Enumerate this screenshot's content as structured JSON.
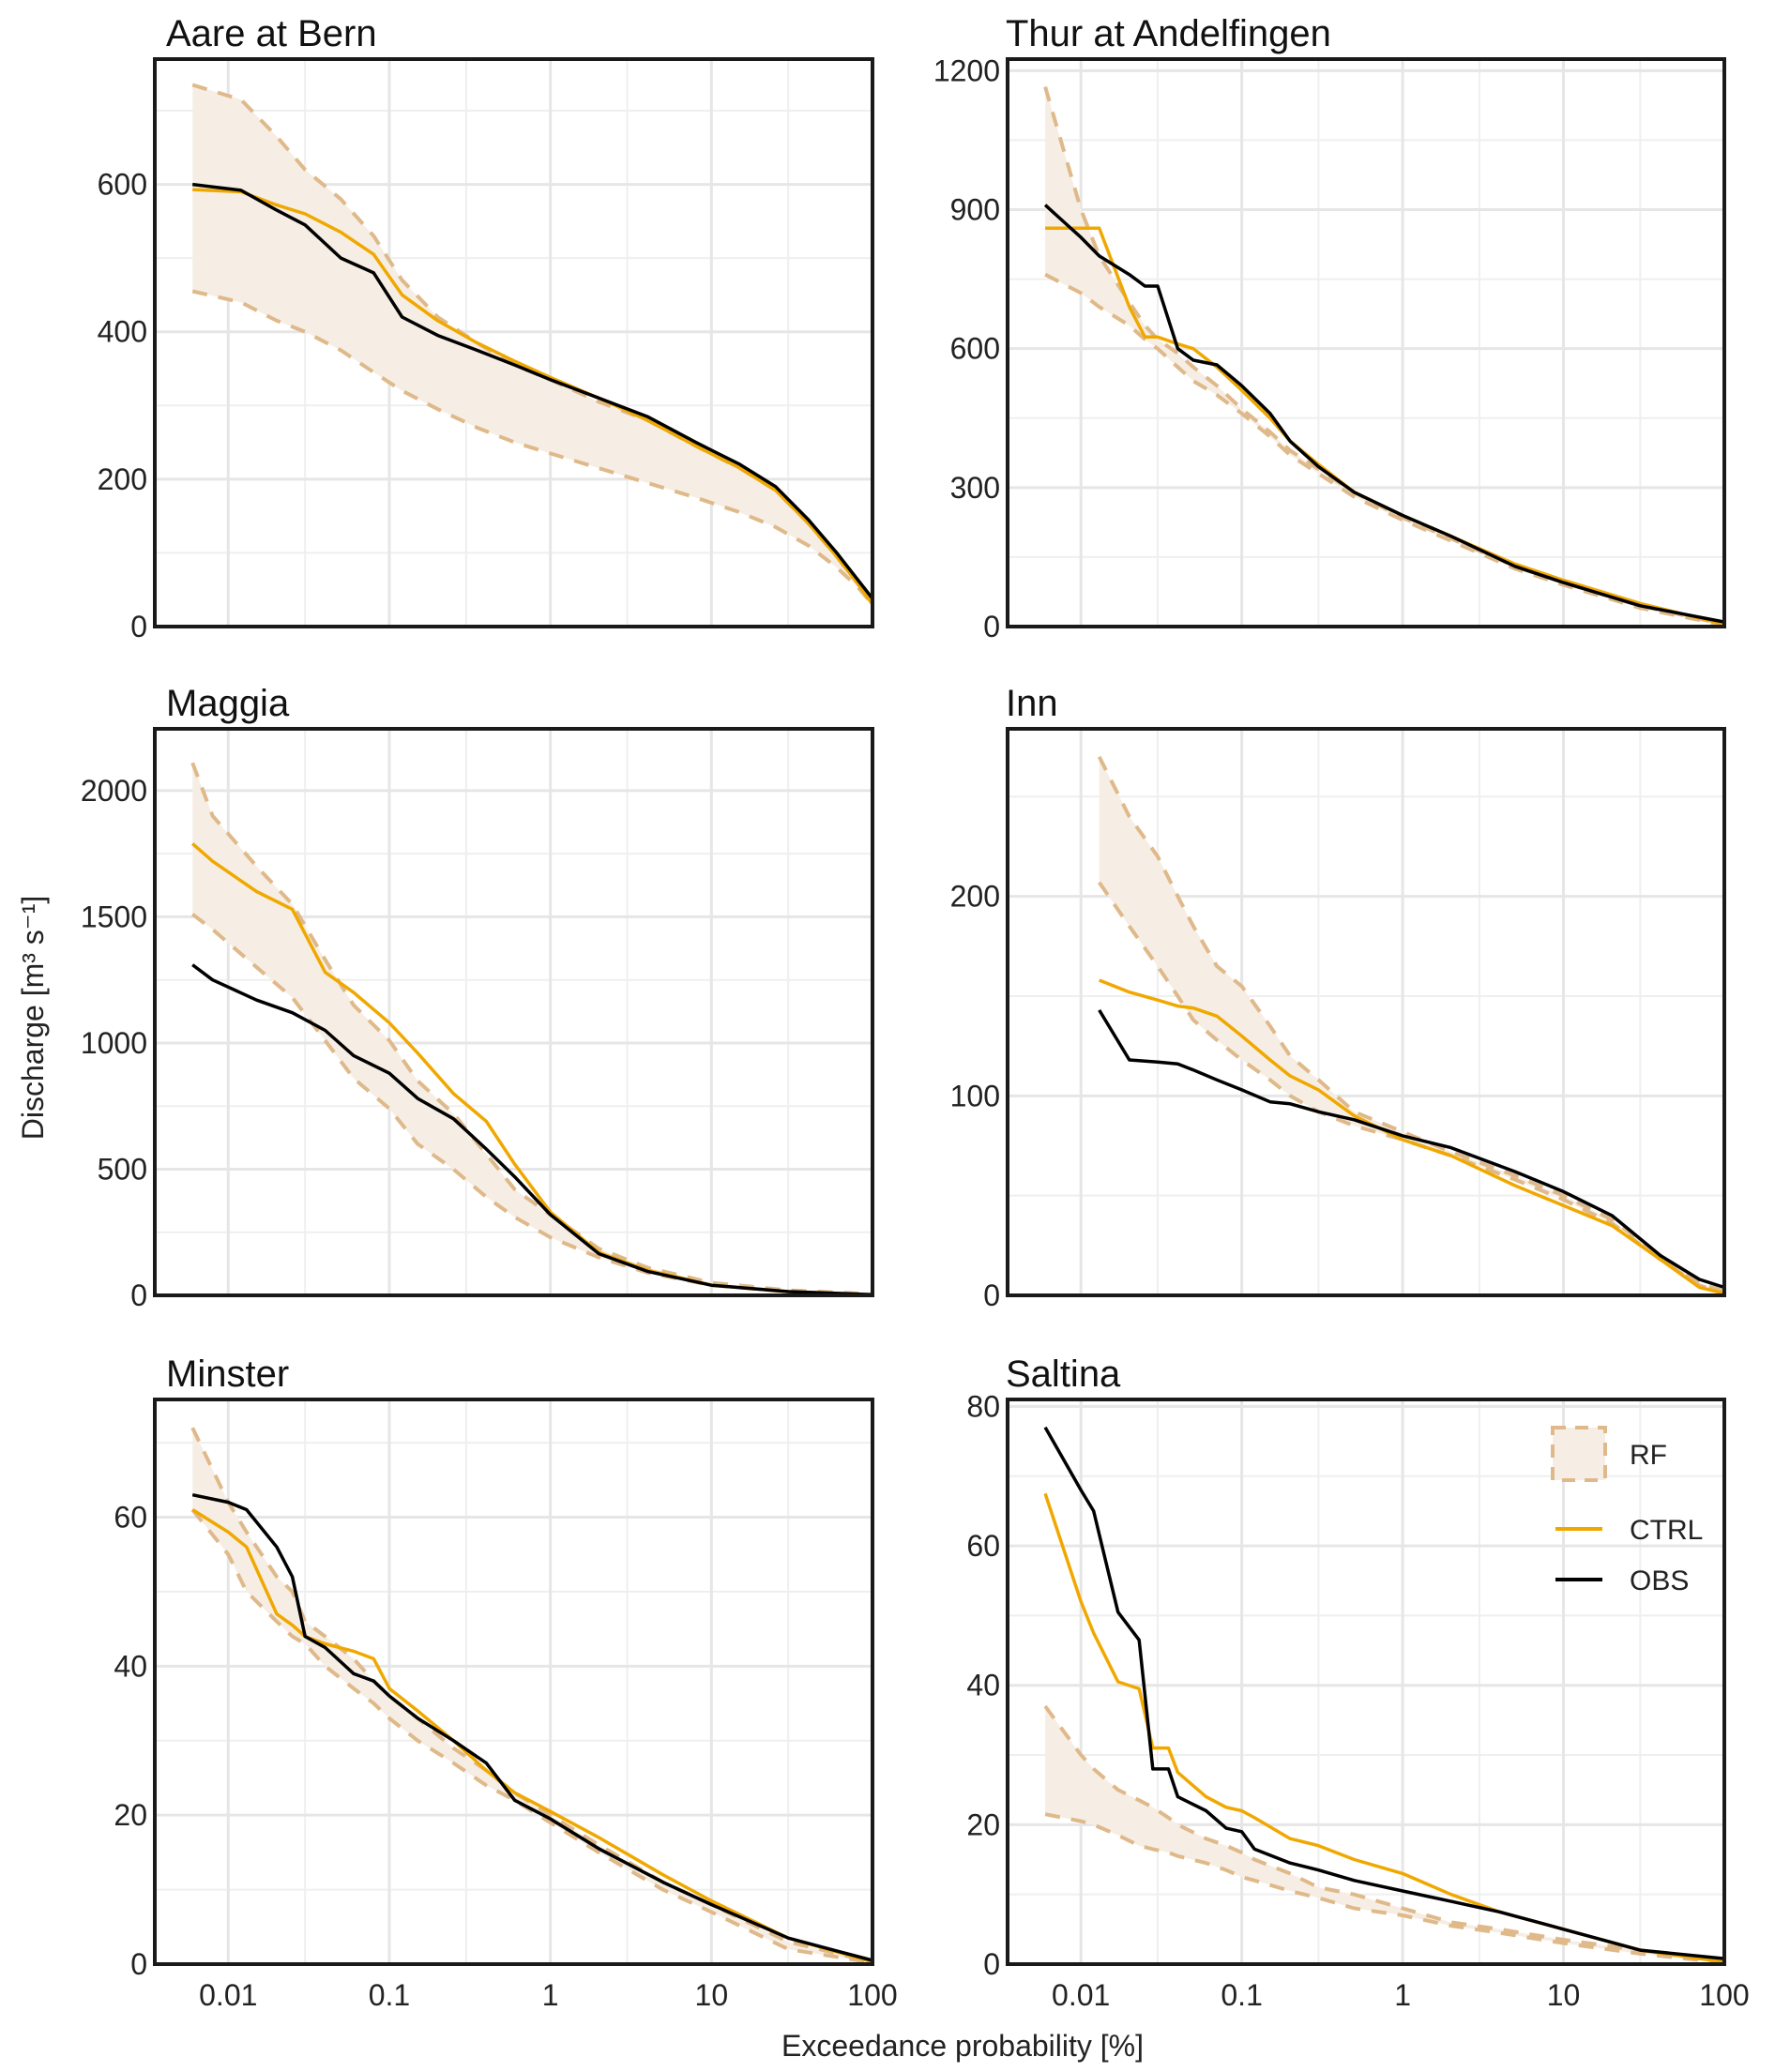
{
  "figure": {
    "y_axis_title": "Discharge [m³ s⁻¹]",
    "x_axis_title": "Exceedance probability [%]",
    "colors": {
      "rf_fill": "#f6eee4",
      "rf_line": "#dfb98a",
      "ctrl": "#f0a800",
      "obs": "#000000"
    }
  },
  "legend": {
    "placement": "top-right of Saltina panel",
    "items": [
      {
        "key": "rf",
        "label": "RF"
      },
      {
        "key": "ctrl",
        "label": "CTRL"
      },
      {
        "key": "obs",
        "label": "OBS"
      }
    ]
  },
  "chart_data": [
    {
      "type": "line",
      "title": "Aare at Bern",
      "xlabel": "Exceedance probability [%]",
      "ylabel": "Discharge [m³ s⁻¹]",
      "xscale": "log",
      "xlim": [
        0.0035,
        100
      ],
      "xticks": [
        0.01,
        0.1,
        1,
        10,
        100
      ],
      "show_xticks": false,
      "ylim": [
        0,
        770
      ],
      "yticks": [
        0,
        200,
        400,
        600
      ],
      "yminor": [
        100,
        300,
        500,
        700
      ],
      "x": [
        0.006,
        0.012,
        0.02,
        0.03,
        0.05,
        0.08,
        0.12,
        0.2,
        0.35,
        0.6,
        1,
        2,
        4,
        8,
        15,
        25,
        40,
        60,
        80,
        100
      ],
      "series": [
        {
          "name": "RF_upper",
          "values": [
            735,
            715,
            665,
            620,
            580,
            530,
            470,
            420,
            385,
            355,
            335,
            305,
            280,
            245,
            215,
            185,
            140,
            95,
            60,
            32
          ]
        },
        {
          "name": "RF_lower",
          "values": [
            455,
            440,
            415,
            400,
            375,
            345,
            320,
            295,
            270,
            250,
            235,
            215,
            195,
            175,
            155,
            135,
            110,
            80,
            55,
            30
          ]
        },
        {
          "name": "CTRL",
          "values": [
            593,
            590,
            572,
            560,
            535,
            505,
            450,
            415,
            385,
            360,
            338,
            310,
            280,
            245,
            215,
            185,
            140,
            95,
            60,
            30
          ]
        },
        {
          "name": "OBS",
          "values": [
            600,
            592,
            565,
            545,
            500,
            480,
            420,
            395,
            375,
            355,
            335,
            310,
            285,
            250,
            220,
            190,
            145,
            100,
            65,
            38
          ]
        }
      ]
    },
    {
      "type": "line",
      "title": "Thur at Andelfingen",
      "xlabel": "Exceedance probability [%]",
      "ylabel": "Discharge [m³ s⁻¹]",
      "xscale": "log",
      "xlim": [
        0.0035,
        100
      ],
      "xticks": [
        0.01,
        0.1,
        1,
        10,
        100
      ],
      "show_xticks": false,
      "ylim": [
        0,
        1225
      ],
      "yticks": [
        0,
        300,
        600,
        900,
        1200
      ],
      "yminor": [
        150,
        450,
        750,
        1050
      ],
      "x": [
        0.006,
        0.01,
        0.013,
        0.02,
        0.025,
        0.03,
        0.04,
        0.05,
        0.07,
        0.1,
        0.15,
        0.2,
        0.3,
        0.5,
        1,
        2,
        5,
        10,
        30,
        100
      ],
      "series": [
        {
          "name": "RF_upper",
          "values": [
            1165,
            900,
            800,
            700,
            650,
            620,
            590,
            560,
            520,
            470,
            420,
            380,
            340,
            290,
            235,
            190,
            130,
            95,
            45,
            5
          ]
        },
        {
          "name": "RF_lower",
          "values": [
            760,
            720,
            690,
            650,
            620,
            600,
            560,
            530,
            500,
            460,
            410,
            370,
            330,
            280,
            230,
            185,
            125,
            90,
            40,
            3
          ]
        },
        {
          "name": "CTRL",
          "values": [
            860,
            860,
            860,
            690,
            625,
            625,
            610,
            600,
            560,
            510,
            450,
            400,
            350,
            290,
            240,
            195,
            135,
            100,
            50,
            5
          ]
        },
        {
          "name": "OBS",
          "values": [
            910,
            840,
            800,
            760,
            735,
            735,
            600,
            575,
            565,
            520,
            460,
            400,
            345,
            290,
            240,
            195,
            130,
            95,
            45,
            10
          ]
        }
      ]
    },
    {
      "type": "line",
      "title": "Maggia",
      "xlabel": "Exceedance probability [%]",
      "ylabel": "Discharge [m³ s⁻¹]",
      "xscale": "log",
      "xlim": [
        0.0035,
        100
      ],
      "xticks": [
        0.01,
        0.1,
        1,
        10,
        100
      ],
      "show_xticks": false,
      "ylim": [
        0,
        2245
      ],
      "yticks": [
        0,
        500,
        1000,
        1500,
        2000
      ],
      "yminor": [
        250,
        750,
        1250,
        1750
      ],
      "x": [
        0.006,
        0.008,
        0.015,
        0.025,
        0.04,
        0.06,
        0.1,
        0.15,
        0.25,
        0.4,
        0.6,
        1,
        2,
        4,
        10,
        30,
        100
      ],
      "series": [
        {
          "name": "RF_upper",
          "values": [
            2110,
            1900,
            1700,
            1550,
            1330,
            1150,
            1010,
            850,
            720,
            560,
            420,
            320,
            185,
            110,
            50,
            20,
            5
          ]
        },
        {
          "name": "RF_lower",
          "values": [
            1510,
            1450,
            1300,
            1180,
            1010,
            860,
            740,
            600,
            500,
            390,
            310,
            230,
            150,
            90,
            40,
            15,
            3
          ]
        },
        {
          "name": "CTRL",
          "values": [
            1790,
            1720,
            1600,
            1530,
            1280,
            1200,
            1080,
            960,
            800,
            690,
            520,
            330,
            170,
            100,
            40,
            15,
            3
          ]
        },
        {
          "name": "OBS",
          "values": [
            1310,
            1250,
            1170,
            1120,
            1050,
            950,
            880,
            780,
            700,
            580,
            470,
            320,
            165,
            95,
            40,
            15,
            3
          ]
        }
      ]
    },
    {
      "type": "line",
      "title": "Inn",
      "xlabel": "Exceedance probability [%]",
      "ylabel": "Discharge [m³ s⁻¹]",
      "xscale": "log",
      "xlim": [
        0.0035,
        100
      ],
      "xticks": [
        0.01,
        0.1,
        1,
        10,
        100
      ],
      "show_xticks": false,
      "ylim": [
        0,
        284
      ],
      "yticks": [
        0,
        100,
        200
      ],
      "yminor": [
        50,
        150,
        250
      ],
      "x": [
        0.013,
        0.02,
        0.03,
        0.04,
        0.05,
        0.07,
        0.1,
        0.15,
        0.2,
        0.3,
        0.5,
        1,
        2,
        5,
        10,
        20,
        40,
        70,
        100
      ],
      "series": [
        {
          "name": "RF_upper",
          "values": [
            270,
            240,
            220,
            200,
            185,
            165,
            155,
            135,
            120,
            108,
            92,
            82,
            72,
            60,
            50,
            38,
            20,
            6,
            2
          ]
        },
        {
          "name": "RF_lower",
          "values": [
            207,
            185,
            165,
            150,
            138,
            128,
            118,
            108,
            100,
            92,
            85,
            78,
            70,
            58,
            48,
            36,
            18,
            5,
            1
          ]
        },
        {
          "name": "CTRL",
          "values": [
            158,
            152,
            148,
            145,
            144,
            140,
            130,
            118,
            110,
            103,
            90,
            78,
            70,
            55,
            45,
            35,
            18,
            4,
            1
          ]
        },
        {
          "name": "OBS",
          "values": [
            143,
            118,
            117,
            116,
            113,
            108,
            103,
            97,
            96,
            92,
            88,
            80,
            74,
            62,
            52,
            40,
            20,
            8,
            4
          ]
        }
      ]
    },
    {
      "type": "line",
      "title": "Minster",
      "xlabel": "Exceedance probability [%]",
      "ylabel": "Discharge [m³ s⁻¹]",
      "xscale": "log",
      "xlim": [
        0.0035,
        100
      ],
      "xticks": [
        0.01,
        0.1,
        1,
        10,
        100
      ],
      "show_xticks": true,
      "ylim": [
        0,
        75.8
      ],
      "yticks": [
        0,
        20,
        40,
        60
      ],
      "yminor": [
        10,
        30,
        50,
        70
      ],
      "x": [
        0.006,
        0.01,
        0.013,
        0.02,
        0.025,
        0.03,
        0.04,
        0.06,
        0.08,
        0.1,
        0.15,
        0.25,
        0.4,
        0.6,
        1,
        2,
        5,
        10,
        30,
        100
      ],
      "series": [
        {
          "name": "RF_upper",
          "values": [
            72,
            62,
            58,
            52,
            50,
            46,
            44,
            41,
            38,
            36,
            33,
            29,
            26,
            23,
            20,
            16,
            11,
            8,
            3,
            0.3
          ]
        },
        {
          "name": "RF_lower",
          "values": [
            61,
            55,
            50,
            46,
            44,
            43,
            40,
            37,
            35,
            33,
            30,
            27,
            24,
            22,
            19,
            15,
            10,
            7,
            2,
            0.2
          ]
        },
        {
          "name": "CTRL",
          "values": [
            61,
            58,
            56,
            47,
            45.5,
            44,
            43,
            42,
            41,
            37,
            34,
            30,
            26,
            23,
            20.5,
            17,
            12,
            8.5,
            3.5,
            0.3
          ]
        },
        {
          "name": "OBS",
          "values": [
            63,
            62,
            61,
            56,
            52,
            44,
            42.5,
            39,
            38,
            36,
            33,
            30,
            27,
            22,
            19.5,
            15.5,
            11,
            8,
            3.5,
            0.5
          ]
        }
      ]
    },
    {
      "type": "line",
      "title": "Saltina",
      "xlabel": "Exceedance probability [%]",
      "ylabel": "Discharge [m³ s⁻¹]",
      "xscale": "log",
      "xlim": [
        0.0035,
        100
      ],
      "xticks": [
        0.01,
        0.1,
        1,
        10,
        100
      ],
      "show_xticks": true,
      "ylim": [
        0,
        81
      ],
      "yticks": [
        0,
        20,
        40,
        60,
        80
      ],
      "yminor": [
        10,
        30,
        50,
        70
      ],
      "x": [
        0.006,
        0.01,
        0.012,
        0.017,
        0.023,
        0.028,
        0.035,
        0.04,
        0.06,
        0.08,
        0.1,
        0.12,
        0.2,
        0.3,
        0.5,
        1,
        2,
        4,
        10,
        30,
        100
      ],
      "series": [
        {
          "name": "RF_upper",
          "values": [
            37,
            30,
            28,
            25,
            23.5,
            22.5,
            21,
            20,
            18,
            17,
            16,
            15,
            13,
            11,
            10,
            8,
            6,
            5,
            3.5,
            2,
            0.3
          ]
        },
        {
          "name": "RF_lower",
          "values": [
            21.5,
            20.5,
            20,
            18.5,
            17,
            16.5,
            16,
            15.5,
            14.5,
            13.5,
            12.5,
            12,
            10.5,
            9.5,
            8,
            7,
            5.5,
            4.5,
            3,
            1.5,
            0.2
          ]
        },
        {
          "name": "CTRL",
          "values": [
            67.5,
            52,
            47.5,
            40.5,
            39.5,
            31,
            31,
            27.5,
            24,
            22.5,
            22,
            21,
            18,
            17,
            15,
            13,
            10,
            7.5,
            5,
            2,
            0.3
          ]
        },
        {
          "name": "OBS",
          "values": [
            77,
            68,
            65,
            50.5,
            46.5,
            28,
            28,
            24,
            22,
            19.5,
            19,
            16.5,
            14.5,
            13.5,
            12,
            10.5,
            9,
            7.5,
            5,
            2,
            0.8
          ]
        }
      ]
    }
  ]
}
